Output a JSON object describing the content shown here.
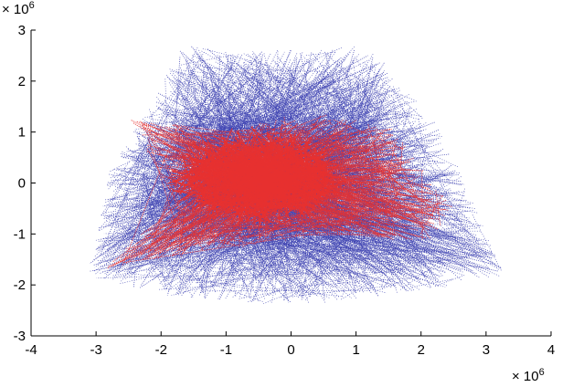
{
  "chart_data": {
    "type": "scatter",
    "title": "",
    "xlabel": "",
    "ylabel": "",
    "x_multiplier": "× 10^6",
    "y_multiplier": "× 10^6",
    "xlim": [
      -4,
      4
    ],
    "ylim": [
      -3,
      3
    ],
    "xticks": [
      -4,
      -3,
      -2,
      -1,
      0,
      1,
      2,
      3,
      4
    ],
    "yticks": [
      -3,
      -2,
      -1,
      0,
      1,
      2,
      3
    ],
    "xtick_labels": [
      "-4",
      "-3",
      "-2",
      "-1",
      "0",
      "1",
      "2",
      "3",
      "4"
    ],
    "ytick_labels": [
      "-3",
      "-2",
      "-1",
      "0",
      "1",
      "2",
      "3"
    ],
    "grid": false,
    "colors": {
      "blue": "#3b3fb0",
      "red": "#e8302e"
    },
    "series": [
      {
        "color": "blue",
        "style": "dotted segments",
        "region_outline": [
          [
            -1.65,
            2.72
          ],
          [
            -0.6,
            2.6
          ],
          [
            0.35,
            2.62
          ],
          [
            1.2,
            2.72
          ],
          [
            2.3,
            1.1
          ],
          [
            3.3,
            -1.8
          ],
          [
            2.0,
            -2.15
          ],
          [
            0.0,
            -2.42
          ],
          [
            -2.0,
            -2.2
          ],
          [
            -3.15,
            -1.85
          ],
          [
            -2.8,
            0.2
          ]
        ]
      },
      {
        "color": "red",
        "style": "dotted segments",
        "region_outline": [
          [
            -2.5,
            1.3
          ],
          [
            -1.0,
            1.0
          ],
          [
            0.2,
            1.4
          ],
          [
            1.5,
            1.15
          ],
          [
            2.5,
            -0.5
          ],
          [
            2.1,
            -1.2
          ],
          [
            0.8,
            -1.0
          ],
          [
            -0.5,
            -1.2
          ],
          [
            -2.9,
            -1.7
          ],
          [
            -1.8,
            -0.4
          ]
        ]
      }
    ]
  }
}
